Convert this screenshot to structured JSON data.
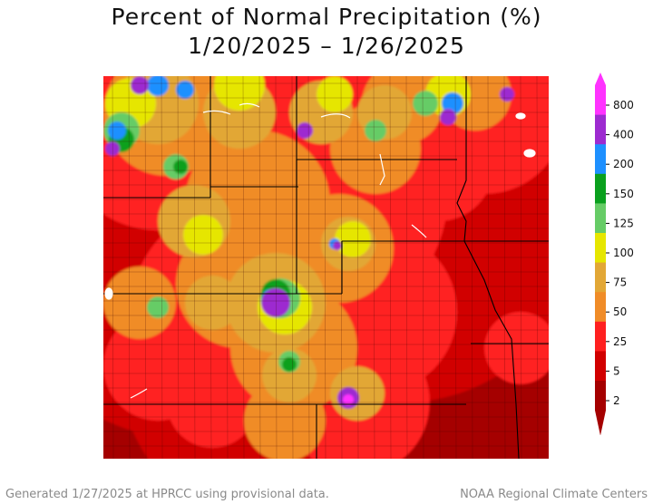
{
  "title_line1": "Percent of Normal Precipitation (%)",
  "title_line2": "1/20/2025 – 1/26/2025",
  "legend": {
    "ticks": [
      "800",
      "400",
      "200",
      "150",
      "125",
      "100",
      "75",
      "50",
      "25",
      "5",
      "2"
    ],
    "colors": [
      "#ff33ff",
      "#9d2bd0",
      "#1e90ff",
      "#0aa01e",
      "#66cc66",
      "#e6e600",
      "#e2a736",
      "#f08c28",
      "#ff2020",
      "#d10000",
      "#a50000"
    ]
  },
  "map": {
    "background": "#a50000",
    "color_levels": [
      "#a50000",
      "#d10000",
      "#ff2020",
      "#f08c28",
      "#e2a736",
      "#e6e600",
      "#66cc66",
      "#0aa01e",
      "#1e90ff",
      "#9d2bd0",
      "#ff33ff"
    ]
  },
  "footer_left": "Generated 1/27/2025 at HPRCC using provisional data.",
  "footer_right": "NOAA Regional Climate Centers"
}
